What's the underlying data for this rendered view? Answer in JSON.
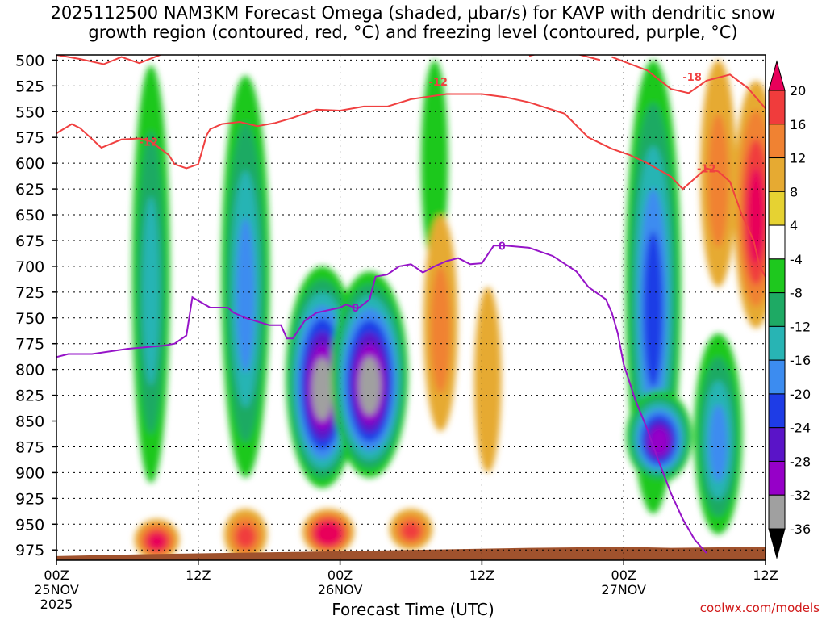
{
  "title": {
    "line1": "2025112500 NAM3KM Forecast Omega (shaded, μbar/s) for KAVP with dendritic snow",
    "line2": "growth region (contoured, red, °C) and freezing level (contoured, purple, °C)"
  },
  "watermark": "coolwx.com/models",
  "chart_data": {
    "type": "heatmap",
    "title": "2025112500 NAM3KM Forecast Omega (shaded, μbar/s) for KAVP with dendritic snow growth region (contoured, red, °C) and freezing level (contoured, purple, °C)",
    "xlabel": "Forecast Time (UTC)",
    "ylabel": "",
    "x_unit": "forecast hour",
    "xlim": [
      0,
      60
    ],
    "ylim": [
      985,
      495
    ],
    "y_ticks": [
      500,
      525,
      550,
      575,
      600,
      625,
      650,
      675,
      700,
      725,
      750,
      775,
      800,
      825,
      850,
      875,
      900,
      925,
      950,
      975
    ],
    "x_ticks": [
      {
        "hour": 0,
        "label": "00Z",
        "date": "25NOV",
        "year": "2025"
      },
      {
        "hour": 12,
        "label": "12Z",
        "date": "",
        "year": ""
      },
      {
        "hour": 24,
        "label": "00Z",
        "date": "26NOV",
        "year": ""
      },
      {
        "hour": 36,
        "label": "12Z",
        "date": "",
        "year": ""
      },
      {
        "hour": 48,
        "label": "00Z",
        "date": "27NOV",
        "year": ""
      },
      {
        "hour": 60,
        "label": "12Z",
        "date": "",
        "year": ""
      }
    ],
    "grid": true,
    "colorbar": {
      "levels": [
        20,
        16,
        12,
        8,
        4,
        -4,
        -8,
        -12,
        -16,
        -20,
        -24,
        -28,
        -32,
        -36
      ],
      "colors": [
        "#e8005a",
        "#f03c3c",
        "#f08232",
        "#e6aa32",
        "#e6d232",
        "#ffffff",
        "#1ec81e",
        "#1eaa64",
        "#28b4b4",
        "#3c8cf0",
        "#1e3ce6",
        "#5a14c8",
        "#9600c8",
        "#a0a0a0",
        "#000000"
      ]
    },
    "omega_features": [
      {
        "hour": 8,
        "p_top": 505,
        "p_bottom": 910,
        "value": -14
      },
      {
        "hour": 16,
        "p_top": 515,
        "p_bottom": 905,
        "value": -20
      },
      {
        "hour": 22.5,
        "p_top": 700,
        "p_bottom": 915,
        "value": -34
      },
      {
        "hour": 26.5,
        "p_top": 705,
        "p_bottom": 905,
        "value": -36
      },
      {
        "hour": 32,
        "p_top": 500,
        "p_bottom": 700,
        "value": -8
      },
      {
        "hour": 50.5,
        "p_top": 500,
        "p_bottom": 940,
        "value": -24
      },
      {
        "hour": 51,
        "p_top": 820,
        "p_bottom": 910,
        "value": -30
      },
      {
        "hour": 56,
        "p_top": 765,
        "p_bottom": 960,
        "value": -20
      },
      {
        "hour": 8.5,
        "p_top": 945,
        "p_bottom": 985,
        "value": 18
      },
      {
        "hour": 16,
        "p_top": 935,
        "p_bottom": 985,
        "value": 17
      },
      {
        "hour": 23,
        "p_top": 935,
        "p_bottom": 980,
        "value": 22
      },
      {
        "hour": 30,
        "p_top": 935,
        "p_bottom": 975,
        "value": 17
      },
      {
        "hour": 32.5,
        "p_top": 650,
        "p_bottom": 860,
        "value": 12
      },
      {
        "hour": 36.5,
        "p_top": 720,
        "p_bottom": 900,
        "value": 8
      },
      {
        "hour": 56,
        "p_top": 500,
        "p_bottom": 720,
        "value": 13
      },
      {
        "hour": 59.2,
        "p_top": 520,
        "p_bottom": 760,
        "value": 18
      }
    ],
    "contours": [
      {
        "label": "-12",
        "color": "#f04040",
        "points": [
          [
            0,
            571
          ],
          [
            1.3,
            562
          ],
          [
            2,
            566
          ],
          [
            3.8,
            585
          ],
          [
            5.5,
            577
          ],
          [
            7,
            576
          ],
          [
            8,
            579
          ],
          [
            9.5,
            592
          ],
          [
            10,
            601
          ],
          [
            11,
            605
          ],
          [
            12,
            601
          ],
          [
            12.7,
            573
          ],
          [
            13,
            567
          ],
          [
            14,
            562
          ],
          [
            15.5,
            560
          ],
          [
            17,
            564
          ],
          [
            18.5,
            561
          ],
          [
            20,
            556
          ],
          [
            22,
            548
          ],
          [
            24,
            549
          ],
          [
            26,
            545
          ],
          [
            28,
            545
          ],
          [
            30,
            538
          ],
          [
            33,
            533
          ],
          [
            36,
            533
          ],
          [
            38,
            536
          ],
          [
            40,
            541
          ],
          [
            43,
            552
          ],
          [
            45,
            575
          ],
          [
            47,
            586
          ],
          [
            48.5,
            592
          ],
          [
            50,
            600
          ],
          [
            52,
            613
          ],
          [
            53,
            625
          ],
          [
            54,
            615
          ],
          [
            55,
            605
          ],
          [
            56,
            608
          ],
          [
            57,
            618
          ],
          [
            58,
            650
          ],
          [
            59,
            675
          ],
          [
            59.5,
            700
          ],
          [
            60,
            710
          ]
        ]
      },
      {
        "label": "-18",
        "color": "#f04040",
        "points": [
          [
            47,
            497
          ],
          [
            50,
            510
          ],
          [
            52,
            528
          ],
          [
            53.5,
            532
          ],
          [
            55,
            520
          ],
          [
            57,
            514
          ],
          [
            58.5,
            527
          ],
          [
            60,
            547
          ]
        ]
      },
      {
        "label": "-18",
        "color": "#f04040",
        "points": [
          [
            0,
            495
          ],
          [
            2,
            499
          ],
          [
            4,
            504
          ],
          [
            5.5,
            497
          ],
          [
            7,
            503
          ],
          [
            9,
            494
          ]
        ]
      },
      {
        "label": "-18",
        "color": "#f04040",
        "points": [
          [
            40,
            496
          ],
          [
            42,
            490
          ],
          [
            44,
            494
          ],
          [
            46,
            500
          ]
        ]
      },
      {
        "label": "0",
        "color": "#9614c8",
        "points": [
          [
            0,
            788
          ],
          [
            1,
            785
          ],
          [
            3,
            785
          ],
          [
            6,
            780
          ],
          [
            9,
            777
          ],
          [
            10,
            775
          ],
          [
            11,
            767
          ],
          [
            11.5,
            730
          ],
          [
            13,
            740
          ],
          [
            14.5,
            740
          ],
          [
            15,
            745
          ],
          [
            16,
            750
          ],
          [
            18,
            757
          ],
          [
            19,
            757
          ],
          [
            19.5,
            770
          ],
          [
            20,
            770
          ],
          [
            21,
            753
          ],
          [
            22,
            745
          ],
          [
            24,
            740
          ],
          [
            24.5,
            737
          ],
          [
            25.5,
            741
          ],
          [
            26.5,
            732
          ],
          [
            27,
            710
          ],
          [
            28,
            708
          ],
          [
            29,
            700
          ],
          [
            30,
            698
          ],
          [
            31,
            706
          ],
          [
            32,
            700
          ],
          [
            33,
            695
          ],
          [
            34,
            692
          ],
          [
            35,
            698
          ],
          [
            36,
            697
          ],
          [
            37,
            680
          ],
          [
            38,
            680
          ],
          [
            40,
            682
          ],
          [
            42,
            690
          ],
          [
            44,
            705
          ],
          [
            45,
            720
          ],
          [
            46,
            728
          ],
          [
            46.5,
            732
          ],
          [
            47,
            745
          ],
          [
            47.5,
            765
          ],
          [
            48,
            795
          ],
          [
            49,
            830
          ],
          [
            50,
            858
          ],
          [
            51,
            890
          ],
          [
            52,
            920
          ],
          [
            53,
            945
          ],
          [
            54,
            965
          ],
          [
            55,
            978
          ]
        ]
      }
    ],
    "contour_labels": [
      {
        "text": "-12",
        "hour": 7.8,
        "p": 579
      },
      {
        "text": "-12",
        "hour": 32.3,
        "p": 521
      },
      {
        "text": "-12",
        "hour": 55,
        "p": 605
      },
      {
        "text": "-18",
        "hour": 53.8,
        "p": 516
      },
      {
        "text": "0",
        "hour": 25.3,
        "p": 740
      },
      {
        "text": "0",
        "hour": 37.7,
        "p": 680
      }
    ]
  }
}
